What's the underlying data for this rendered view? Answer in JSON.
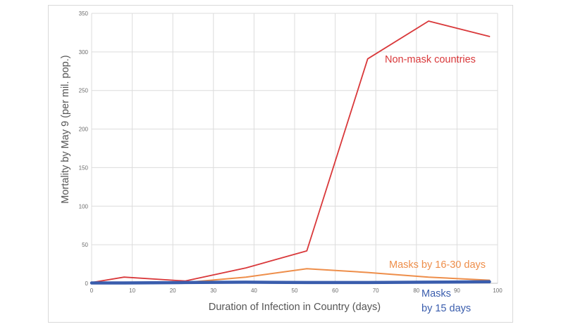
{
  "chart_data": {
    "type": "line",
    "xlabel": "Duration of Infection  in Country (days)",
    "ylabel": "Mortality by May 9 (per mil. pop.)",
    "xlim": [
      0,
      100
    ],
    "ylim": [
      0,
      350
    ],
    "xticks": [
      "0",
      "10",
      "20",
      "30",
      "40",
      "50",
      "60",
      "70",
      "80",
      "90",
      "100"
    ],
    "yticks": [
      "0",
      "50",
      "100",
      "150",
      "200",
      "250",
      "300",
      "350"
    ],
    "grid": true,
    "series": [
      {
        "name": "Non-mask countries",
        "color": "#d9383a",
        "x": [
          0,
          8,
          23,
          38,
          53,
          68,
          83,
          98
        ],
        "y": [
          1,
          8,
          3,
          20,
          42,
          291,
          340,
          320
        ]
      },
      {
        "name": "Masks by 16-30 days",
        "color": "#ee8e4a",
        "x": [
          0,
          8,
          23,
          38,
          53,
          68,
          83,
          98
        ],
        "y": [
          0,
          1,
          1,
          8,
          19,
          14,
          8,
          4
        ]
      },
      {
        "name": "Masks by 15 days",
        "color": "#3a5dad",
        "x": [
          0,
          8,
          23,
          38,
          53,
          68,
          83,
          98
        ],
        "y": [
          0.5,
          0.5,
          1,
          1.5,
          1,
          1,
          1.5,
          2
        ]
      }
    ],
    "labels": {
      "non_mask": "Non-mask countries",
      "masks_16_30": "Masks by 16-30 days",
      "masks_15_line1": "Masks",
      "masks_15_line2": "by 15 days"
    }
  }
}
